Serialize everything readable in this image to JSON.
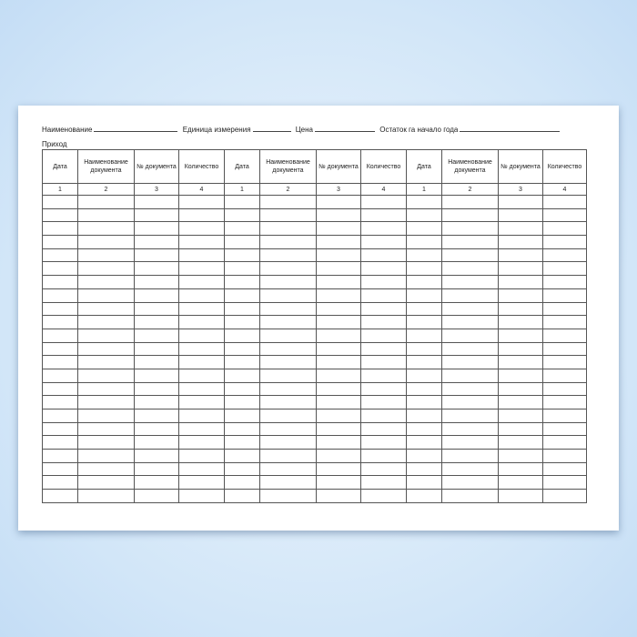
{
  "header": {
    "name_label": "Наименование",
    "unit_label": "Единица измерения",
    "price_label": "Цена",
    "balance_label": "Остаток га начало года"
  },
  "section_label": "Приход",
  "columns": [
    "Дата",
    "Наименование документа",
    "№ документа",
    "Количество",
    "Дата",
    "Наименование документа",
    "№ документа",
    "Количество",
    "Дата",
    "Наименование документа",
    "№ документа",
    "Количество"
  ],
  "column_numbers": [
    "1",
    "2",
    "3",
    "4",
    "1",
    "2",
    "3",
    "4",
    "1",
    "2",
    "3",
    "4"
  ],
  "empty_rows": 23
}
